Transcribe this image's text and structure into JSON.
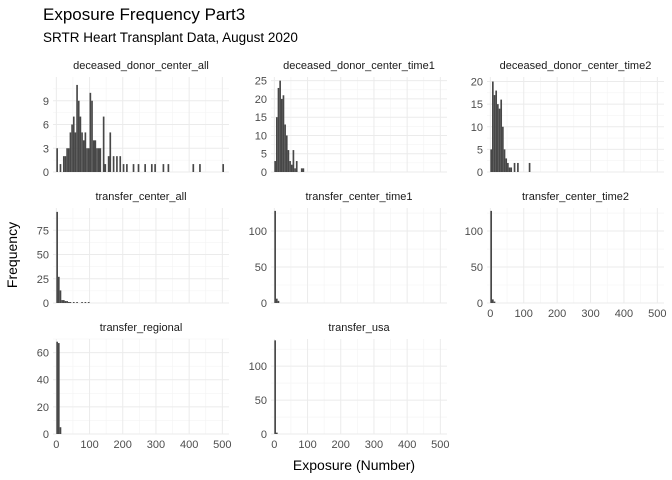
{
  "chart_data": {
    "type": "bar",
    "subtype": "faceted-histogram",
    "title": "Exposure Frequency Part3",
    "subtitle": "SRTR Heart Transplant Data, August 2020",
    "xlabel": "Exposure (Number)",
    "ylabel": "Frequency",
    "grid": true,
    "bar_color": "#474747",
    "x_ticks": [
      0,
      100,
      200,
      300,
      400,
      500
    ],
    "panels": [
      {
        "name": "deceased_donor_center_all",
        "xlim": [
          -10,
          520
        ],
        "ylim": [
          0,
          12
        ],
        "y_ticks": [
          0,
          3,
          6,
          9
        ],
        "bin_width": 5,
        "show_x_ticks": false,
        "bins": [
          [
            0,
            3
          ],
          [
            10,
            1
          ],
          [
            20,
            2
          ],
          [
            25,
            2
          ],
          [
            30,
            3
          ],
          [
            35,
            3
          ],
          [
            40,
            5
          ],
          [
            45,
            6
          ],
          [
            50,
            7
          ],
          [
            55,
            5
          ],
          [
            60,
            11
          ],
          [
            65,
            9
          ],
          [
            70,
            7
          ],
          [
            75,
            5
          ],
          [
            80,
            4
          ],
          [
            85,
            5
          ],
          [
            90,
            3
          ],
          [
            95,
            3
          ],
          [
            100,
            10
          ],
          [
            105,
            9
          ],
          [
            110,
            4
          ],
          [
            115,
            4
          ],
          [
            120,
            3
          ],
          [
            125,
            3
          ],
          [
            130,
            3
          ],
          [
            140,
            7
          ],
          [
            145,
            1
          ],
          [
            155,
            2
          ],
          [
            160,
            5
          ],
          [
            170,
            2
          ],
          [
            180,
            2
          ],
          [
            190,
            2
          ],
          [
            200,
            1
          ],
          [
            210,
            1
          ],
          [
            230,
            1
          ],
          [
            245,
            1
          ],
          [
            265,
            1
          ],
          [
            285,
            1
          ],
          [
            295,
            1
          ],
          [
            320,
            1
          ],
          [
            335,
            1
          ],
          [
            410,
            1
          ],
          [
            430,
            1
          ],
          [
            500,
            1
          ]
        ]
      },
      {
        "name": "deceased_donor_center_time1",
        "xlim": [
          -10,
          520
        ],
        "ylim": [
          0,
          26
        ],
        "y_ticks": [
          0,
          5,
          10,
          15,
          20,
          25
        ],
        "bin_width": 5,
        "show_x_ticks": false,
        "bins": [
          [
            0,
            3
          ],
          [
            5,
            15
          ],
          [
            10,
            23
          ],
          [
            15,
            25
          ],
          [
            20,
            20
          ],
          [
            25,
            21
          ],
          [
            30,
            13
          ],
          [
            35,
            10
          ],
          [
            40,
            6
          ],
          [
            45,
            3
          ],
          [
            50,
            2
          ],
          [
            55,
            6
          ],
          [
            60,
            1
          ],
          [
            65,
            3
          ],
          [
            80,
            1
          ],
          [
            85,
            1
          ]
        ]
      },
      {
        "name": "deceased_donor_center_time2",
        "xlim": [
          -10,
          520
        ],
        "ylim": [
          0,
          21
        ],
        "y_ticks": [
          0,
          5,
          10,
          15,
          20
        ],
        "bin_width": 5,
        "show_x_ticks": false,
        "bins": [
          [
            0,
            5
          ],
          [
            5,
            20
          ],
          [
            10,
            17
          ],
          [
            15,
            18
          ],
          [
            20,
            15
          ],
          [
            25,
            14
          ],
          [
            30,
            16
          ],
          [
            35,
            10
          ],
          [
            40,
            5
          ],
          [
            45,
            3
          ],
          [
            50,
            2
          ],
          [
            55,
            1
          ],
          [
            60,
            1
          ],
          [
            70,
            2
          ],
          [
            80,
            2
          ],
          [
            115,
            2
          ]
        ]
      },
      {
        "name": "transfer_center_all",
        "xlim": [
          -10,
          520
        ],
        "ylim": [
          0,
          98
        ],
        "y_ticks": [
          0,
          25,
          50,
          75
        ],
        "bin_width": 5,
        "show_x_ticks": false,
        "bins": [
          [
            0,
            94
          ],
          [
            5,
            27
          ],
          [
            10,
            13
          ],
          [
            15,
            3
          ],
          [
            20,
            3
          ],
          [
            25,
            2
          ],
          [
            30,
            2
          ],
          [
            35,
            1
          ],
          [
            40,
            1
          ],
          [
            50,
            1
          ],
          [
            60,
            1
          ],
          [
            75,
            1
          ],
          [
            85,
            1
          ],
          [
            95,
            1
          ]
        ]
      },
      {
        "name": "transfer_center_time1",
        "xlim": [
          -10,
          520
        ],
        "ylim": [
          0,
          132
        ],
        "y_ticks": [
          0,
          50,
          100
        ],
        "bin_width": 5,
        "show_x_ticks": false,
        "bins": [
          [
            0,
            128
          ],
          [
            5,
            6
          ],
          [
            10,
            3
          ]
        ]
      },
      {
        "name": "transfer_center_time2",
        "xlim": [
          -10,
          520
        ],
        "ylim": [
          0,
          132
        ],
        "y_ticks": [
          0,
          50,
          100
        ],
        "bin_width": 5,
        "show_x_ticks": true,
        "bins": [
          [
            0,
            128
          ],
          [
            5,
            5
          ],
          [
            10,
            2
          ]
        ]
      },
      {
        "name": "transfer_regional",
        "xlim": [
          -10,
          520
        ],
        "ylim": [
          0,
          70
        ],
        "y_ticks": [
          0,
          20,
          40,
          60
        ],
        "bin_width": 5,
        "show_x_ticks": true,
        "bins": [
          [
            0,
            68
          ],
          [
            5,
            67
          ],
          [
            10,
            5
          ]
        ]
      },
      {
        "name": "transfer_usa",
        "xlim": [
          -10,
          520
        ],
        "ylim": [
          0,
          140
        ],
        "y_ticks": [
          0,
          50,
          100
        ],
        "bin_width": 5,
        "show_x_ticks": true,
        "bins": [
          [
            0,
            138
          ],
          [
            5,
            2
          ]
        ]
      }
    ]
  }
}
